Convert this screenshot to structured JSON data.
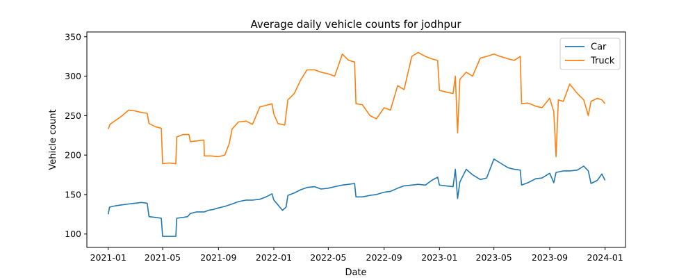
{
  "chart_data": {
    "type": "line",
    "title": "Average daily vehicle counts for jodhpur",
    "xlabel": "Date",
    "ylabel": "Vehicle count",
    "xlim": [
      "2020-11-15",
      "2024-02-15"
    ],
    "ylim": [
      83,
      356
    ],
    "x_ticks": [
      "2021-01",
      "2021-05",
      "2021-09",
      "2022-01",
      "2022-05",
      "2022-09",
      "2023-01",
      "2023-05",
      "2023-09",
      "2024-01"
    ],
    "x_tick_dates": [
      "2021-01-01",
      "2021-05-01",
      "2021-09-01",
      "2022-01-01",
      "2022-05-01",
      "2022-09-01",
      "2023-01-01",
      "2023-05-01",
      "2023-09-01",
      "2024-01-01"
    ],
    "y_ticks": [
      100,
      150,
      200,
      250,
      300,
      350
    ],
    "grid": false,
    "legend": "top-right",
    "series": [
      {
        "name": "Car",
        "color": "#1f77b4",
        "points": [
          [
            "2021-01-01",
            125
          ],
          [
            "2021-01-04",
            134
          ],
          [
            "2021-01-10",
            135
          ],
          [
            "2021-01-20",
            136
          ],
          [
            "2021-02-01",
            137
          ],
          [
            "2021-02-15",
            138
          ],
          [
            "2021-03-01",
            139
          ],
          [
            "2021-03-15",
            140
          ],
          [
            "2021-03-28",
            139
          ],
          [
            "2021-04-01",
            122
          ],
          [
            "2021-04-15",
            121
          ],
          [
            "2021-04-28",
            120
          ],
          [
            "2021-05-01",
            97
          ],
          [
            "2021-05-10",
            97
          ],
          [
            "2021-05-20",
            97
          ],
          [
            "2021-05-30",
            97
          ],
          [
            "2021-06-01",
            120
          ],
          [
            "2021-06-15",
            121
          ],
          [
            "2021-06-25",
            122
          ],
          [
            "2021-07-01",
            126
          ],
          [
            "2021-07-15",
            128
          ],
          [
            "2021-08-01",
            128
          ],
          [
            "2021-08-10",
            130
          ],
          [
            "2021-08-20",
            131
          ],
          [
            "2021-09-01",
            133
          ],
          [
            "2021-09-15",
            135
          ],
          [
            "2021-10-01",
            138
          ],
          [
            "2021-10-15",
            141
          ],
          [
            "2021-11-01",
            143
          ],
          [
            "2021-11-15",
            143
          ],
          [
            "2021-12-01",
            144
          ],
          [
            "2021-12-15",
            147
          ],
          [
            "2021-12-28",
            151
          ],
          [
            "2022-01-01",
            143
          ],
          [
            "2022-01-10",
            137
          ],
          [
            "2022-01-20",
            130
          ],
          [
            "2022-01-28",
            134
          ],
          [
            "2022-02-01",
            149
          ],
          [
            "2022-02-15",
            152
          ],
          [
            "2022-03-01",
            156
          ],
          [
            "2022-03-15",
            159
          ],
          [
            "2022-04-01",
            160
          ],
          [
            "2022-04-15",
            157
          ],
          [
            "2022-05-01",
            158
          ],
          [
            "2022-05-15",
            160
          ],
          [
            "2022-06-01",
            162
          ],
          [
            "2022-06-15",
            163
          ],
          [
            "2022-06-28",
            164
          ],
          [
            "2022-07-01",
            147
          ],
          [
            "2022-07-15",
            147
          ],
          [
            "2022-08-01",
            149
          ],
          [
            "2022-08-15",
            150
          ],
          [
            "2022-09-01",
            153
          ],
          [
            "2022-09-15",
            154
          ],
          [
            "2022-10-01",
            158
          ],
          [
            "2022-10-15",
            161
          ],
          [
            "2022-11-01",
            162
          ],
          [
            "2022-11-15",
            163
          ],
          [
            "2022-12-01",
            162
          ],
          [
            "2022-12-15",
            168
          ],
          [
            "2022-12-28",
            172
          ],
          [
            "2023-01-01",
            162
          ],
          [
            "2023-01-15",
            161
          ],
          [
            "2023-01-31",
            160
          ],
          [
            "2023-02-05",
            182
          ],
          [
            "2023-02-10",
            145
          ],
          [
            "2023-02-15",
            166
          ],
          [
            "2023-03-01",
            182
          ],
          [
            "2023-03-15",
            175
          ],
          [
            "2023-04-01",
            169
          ],
          [
            "2023-04-15",
            171
          ],
          [
            "2023-05-01",
            195
          ],
          [
            "2023-05-15",
            190
          ],
          [
            "2023-06-01",
            184
          ],
          [
            "2023-06-15",
            182
          ],
          [
            "2023-06-28",
            181
          ],
          [
            "2023-07-01",
            162
          ],
          [
            "2023-07-15",
            165
          ],
          [
            "2023-08-01",
            170
          ],
          [
            "2023-08-15",
            171
          ],
          [
            "2023-09-01",
            177
          ],
          [
            "2023-09-10",
            165
          ],
          [
            "2023-09-15",
            178
          ],
          [
            "2023-10-01",
            180
          ],
          [
            "2023-10-15",
            180
          ],
          [
            "2023-11-01",
            181
          ],
          [
            "2023-11-15",
            186
          ],
          [
            "2023-11-25",
            180
          ],
          [
            "2023-12-01",
            164
          ],
          [
            "2023-12-15",
            168
          ],
          [
            "2023-12-25",
            176
          ],
          [
            "2024-01-01",
            168
          ]
        ]
      },
      {
        "name": "Truck",
        "color": "#ff7f0e",
        "points": [
          [
            "2021-01-01",
            233
          ],
          [
            "2021-01-05",
            239
          ],
          [
            "2021-01-15",
            243
          ],
          [
            "2021-02-01",
            250
          ],
          [
            "2021-02-15",
            257
          ],
          [
            "2021-03-01",
            256
          ],
          [
            "2021-03-15",
            254
          ],
          [
            "2021-03-28",
            253
          ],
          [
            "2021-04-01",
            240
          ],
          [
            "2021-04-15",
            236
          ],
          [
            "2021-04-28",
            234
          ],
          [
            "2021-05-01",
            189
          ],
          [
            "2021-05-15",
            190
          ],
          [
            "2021-05-30",
            189
          ],
          [
            "2021-06-01",
            223
          ],
          [
            "2021-06-15",
            226
          ],
          [
            "2021-06-28",
            226
          ],
          [
            "2021-07-01",
            217
          ],
          [
            "2021-07-15",
            218
          ],
          [
            "2021-07-31",
            219
          ],
          [
            "2021-08-01",
            199
          ],
          [
            "2021-08-15",
            199
          ],
          [
            "2021-09-01",
            198
          ],
          [
            "2021-09-15",
            200
          ],
          [
            "2021-09-25",
            215
          ],
          [
            "2021-10-01",
            233
          ],
          [
            "2021-10-15",
            242
          ],
          [
            "2021-11-01",
            243
          ],
          [
            "2021-11-15",
            239
          ],
          [
            "2021-12-01",
            261
          ],
          [
            "2021-12-15",
            263
          ],
          [
            "2021-12-28",
            265
          ],
          [
            "2022-01-01",
            252
          ],
          [
            "2022-01-10",
            240
          ],
          [
            "2022-01-25",
            238
          ],
          [
            "2022-02-01",
            270
          ],
          [
            "2022-02-15",
            278
          ],
          [
            "2022-03-01",
            295
          ],
          [
            "2022-03-15",
            308
          ],
          [
            "2022-04-01",
            308
          ],
          [
            "2022-04-15",
            305
          ],
          [
            "2022-05-01",
            303
          ],
          [
            "2022-05-15",
            300
          ],
          [
            "2022-06-01",
            328
          ],
          [
            "2022-06-15",
            320
          ],
          [
            "2022-06-28",
            318
          ],
          [
            "2022-07-01",
            265
          ],
          [
            "2022-07-15",
            264
          ],
          [
            "2022-08-01",
            250
          ],
          [
            "2022-08-15",
            246
          ],
          [
            "2022-09-01",
            260
          ],
          [
            "2022-09-15",
            257
          ],
          [
            "2022-10-01",
            288
          ],
          [
            "2022-10-15",
            283
          ],
          [
            "2022-11-01",
            325
          ],
          [
            "2022-11-15",
            330
          ],
          [
            "2022-12-01",
            325
          ],
          [
            "2022-12-15",
            322
          ],
          [
            "2022-12-28",
            320
          ],
          [
            "2023-01-01",
            282
          ],
          [
            "2023-01-15",
            280
          ],
          [
            "2023-01-31",
            278
          ],
          [
            "2023-02-05",
            300
          ],
          [
            "2023-02-10",
            228
          ],
          [
            "2023-02-15",
            296
          ],
          [
            "2023-03-01",
            305
          ],
          [
            "2023-03-15",
            300
          ],
          [
            "2023-04-01",
            323
          ],
          [
            "2023-04-15",
            325
          ],
          [
            "2023-05-01",
            328
          ],
          [
            "2023-05-15",
            325
          ],
          [
            "2023-06-01",
            322
          ],
          [
            "2023-06-15",
            320
          ],
          [
            "2023-06-28",
            325
          ],
          [
            "2023-07-01",
            265
          ],
          [
            "2023-07-15",
            266
          ],
          [
            "2023-08-01",
            262
          ],
          [
            "2023-08-15",
            260
          ],
          [
            "2023-09-01",
            272
          ],
          [
            "2023-09-10",
            255
          ],
          [
            "2023-09-15",
            198
          ],
          [
            "2023-09-20",
            270
          ],
          [
            "2023-10-01",
            268
          ],
          [
            "2023-10-15",
            290
          ],
          [
            "2023-11-01",
            278
          ],
          [
            "2023-11-15",
            270
          ],
          [
            "2023-11-25",
            250
          ],
          [
            "2023-12-01",
            268
          ],
          [
            "2023-12-15",
            272
          ],
          [
            "2023-12-25",
            270
          ],
          [
            "2024-01-01",
            265
          ]
        ]
      }
    ]
  }
}
